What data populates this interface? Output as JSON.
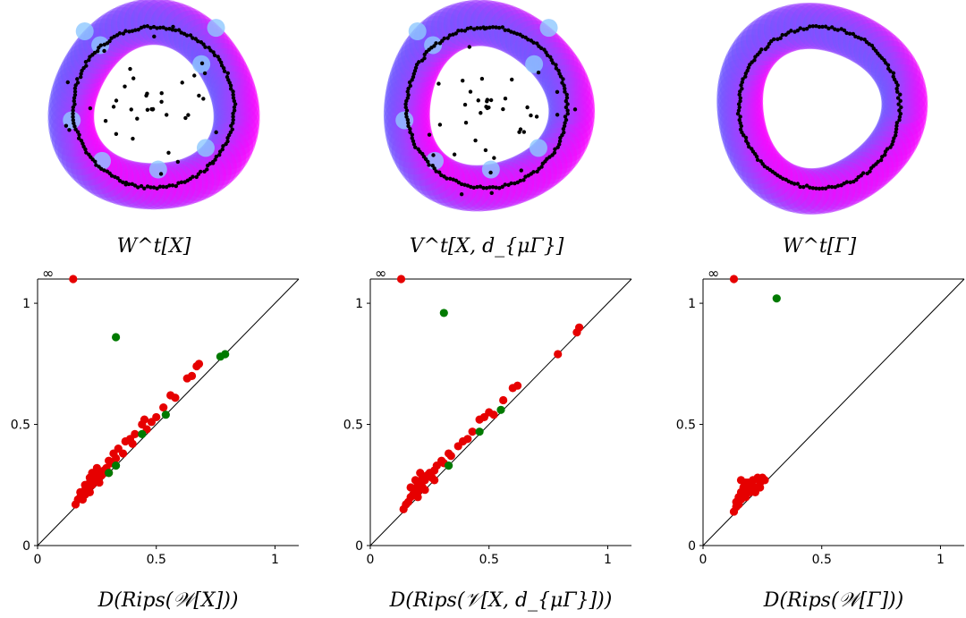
{
  "colors": {
    "finite_class": "#e60000",
    "essential_class": "#007a00",
    "diagonal": "#000000",
    "point_cloud": "#000000",
    "ring_outer": "#ff00ff",
    "ring_inner": "#6a5cff",
    "small_disk": "#8fc8ff"
  },
  "icons": [
    "infinity-marker-icon"
  ],
  "chart_data": [
    {
      "type": "scatter",
      "title": "",
      "caption": "W^t[X]",
      "xlabel": "",
      "ylabel": "",
      "variant": "noisy-circle",
      "outliers": true,
      "series": [],
      "ticks": []
    },
    {
      "type": "scatter",
      "title": "",
      "caption": "V^t[X, d_{μΓ}]",
      "xlabel": "",
      "ylabel": "",
      "variant": "noisy-circle",
      "outliers": true,
      "series": [],
      "ticks": []
    },
    {
      "type": "scatter",
      "title": "",
      "caption": "W^t[Γ]",
      "xlabel": "",
      "ylabel": "",
      "variant": "clean-circle",
      "outliers": false,
      "series": [],
      "ticks": []
    },
    {
      "type": "scatter",
      "title": "",
      "caption": "D(Rips(𝒲[X]))",
      "xlabel": "",
      "ylabel": "",
      "xlim": [
        0,
        1.1
      ],
      "ylim": [
        0,
        1.1
      ],
      "infinity_label": "∞",
      "x_ticks": [
        "0",
        "0.5",
        "1"
      ],
      "y_ticks": [
        "0",
        "0.5",
        "1"
      ],
      "grid": false,
      "series": [
        {
          "class": "finite",
          "points": [
            [
              0.16,
              0.17
            ],
            [
              0.17,
              0.19
            ],
            [
              0.18,
              0.2
            ],
            [
              0.19,
              0.22
            ],
            [
              0.2,
              0.23
            ],
            [
              0.2,
              0.25
            ],
            [
              0.21,
              0.24
            ],
            [
              0.22,
              0.26
            ],
            [
              0.22,
              0.28
            ],
            [
              0.23,
              0.25
            ],
            [
              0.24,
              0.27
            ],
            [
              0.24,
              0.29
            ],
            [
              0.25,
              0.27
            ],
            [
              0.26,
              0.3
            ],
            [
              0.27,
              0.29
            ],
            [
              0.28,
              0.31
            ],
            [
              0.18,
              0.22
            ],
            [
              0.2,
              0.21
            ],
            [
              0.23,
              0.3
            ],
            [
              0.25,
              0.32
            ],
            [
              0.29,
              0.32
            ],
            [
              0.3,
              0.35
            ],
            [
              0.31,
              0.34
            ],
            [
              0.32,
              0.38
            ],
            [
              0.33,
              0.36
            ],
            [
              0.34,
              0.4
            ],
            [
              0.36,
              0.38
            ],
            [
              0.37,
              0.43
            ],
            [
              0.39,
              0.44
            ],
            [
              0.4,
              0.42
            ],
            [
              0.41,
              0.46
            ],
            [
              0.44,
              0.5
            ],
            [
              0.45,
              0.52
            ],
            [
              0.46,
              0.48
            ],
            [
              0.48,
              0.51
            ],
            [
              0.5,
              0.53
            ],
            [
              0.53,
              0.57
            ],
            [
              0.56,
              0.62
            ],
            [
              0.58,
              0.61
            ],
            [
              0.63,
              0.69
            ],
            [
              0.65,
              0.7
            ],
            [
              0.67,
              0.74
            ],
            [
              0.68,
              0.75
            ],
            [
              0.22,
              0.22
            ],
            [
              0.19,
              0.19
            ],
            [
              0.26,
              0.26
            ],
            [
              0.3,
              0.3
            ]
          ],
          "essential": [
            [
              0.15,
              1.1
            ]
          ]
        },
        {
          "class": "essential",
          "points": [
            [
              0.33,
              0.86
            ],
            [
              0.77,
              0.78
            ],
            [
              0.79,
              0.79
            ],
            [
              0.44,
              0.46
            ],
            [
              0.54,
              0.54
            ],
            [
              0.33,
              0.33
            ],
            [
              0.3,
              0.3
            ]
          ]
        }
      ]
    },
    {
      "type": "scatter",
      "title": "",
      "caption": "D(Rips(𝒱[X, d_{μΓ}]))",
      "xlabel": "",
      "ylabel": "",
      "xlim": [
        0,
        1.1
      ],
      "ylim": [
        0,
        1.1
      ],
      "infinity_label": "∞",
      "x_ticks": [
        "0",
        "0.5",
        "1"
      ],
      "y_ticks": [
        "0",
        "0.5",
        "1"
      ],
      "grid": false,
      "series": [
        {
          "class": "finite",
          "points": [
            [
              0.14,
              0.15
            ],
            [
              0.15,
              0.17
            ],
            [
              0.16,
              0.18
            ],
            [
              0.17,
              0.2
            ],
            [
              0.18,
              0.21
            ],
            [
              0.19,
              0.23
            ],
            [
              0.2,
              0.22
            ],
            [
              0.2,
              0.25
            ],
            [
              0.21,
              0.26
            ],
            [
              0.22,
              0.24
            ],
            [
              0.22,
              0.28
            ],
            [
              0.23,
              0.27
            ],
            [
              0.24,
              0.29
            ],
            [
              0.25,
              0.3
            ],
            [
              0.26,
              0.28
            ],
            [
              0.27,
              0.31
            ],
            [
              0.17,
              0.24
            ],
            [
              0.19,
              0.27
            ],
            [
              0.21,
              0.3
            ],
            [
              0.28,
              0.33
            ],
            [
              0.3,
              0.35
            ],
            [
              0.31,
              0.34
            ],
            [
              0.33,
              0.38
            ],
            [
              0.34,
              0.37
            ],
            [
              0.37,
              0.41
            ],
            [
              0.39,
              0.43
            ],
            [
              0.41,
              0.44
            ],
            [
              0.43,
              0.47
            ],
            [
              0.46,
              0.52
            ],
            [
              0.48,
              0.53
            ],
            [
              0.5,
              0.55
            ],
            [
              0.52,
              0.54
            ],
            [
              0.56,
              0.6
            ],
            [
              0.6,
              0.65
            ],
            [
              0.62,
              0.66
            ],
            [
              0.79,
              0.79
            ],
            [
              0.87,
              0.88
            ],
            [
              0.88,
              0.9
            ],
            [
              0.23,
              0.23
            ],
            [
              0.2,
              0.2
            ],
            [
              0.27,
              0.27
            ]
          ],
          "essential": [
            [
              0.13,
              1.1
            ]
          ]
        },
        {
          "class": "essential",
          "points": [
            [
              0.31,
              0.96
            ],
            [
              0.55,
              0.56
            ],
            [
              0.46,
              0.47
            ],
            [
              0.33,
              0.33
            ]
          ]
        }
      ]
    },
    {
      "type": "scatter",
      "title": "",
      "caption": "D(Rips(𝒲[Γ]))",
      "xlabel": "",
      "ylabel": "",
      "xlim": [
        0,
        1.1
      ],
      "ylim": [
        0,
        1.1
      ],
      "infinity_label": "∞",
      "x_ticks": [
        "0",
        "0.5",
        "1"
      ],
      "y_ticks": [
        "0",
        "0.5",
        "1"
      ],
      "grid": false,
      "series": [
        {
          "class": "finite",
          "points": [
            [
              0.13,
              0.14
            ],
            [
              0.14,
              0.16
            ],
            [
              0.14,
              0.18
            ],
            [
              0.15,
              0.17
            ],
            [
              0.15,
              0.2
            ],
            [
              0.16,
              0.19
            ],
            [
              0.16,
              0.22
            ],
            [
              0.17,
              0.21
            ],
            [
              0.17,
              0.24
            ],
            [
              0.18,
              0.2
            ],
            [
              0.18,
              0.23
            ],
            [
              0.19,
              0.22
            ],
            [
              0.19,
              0.26
            ],
            [
              0.2,
              0.25
            ],
            [
              0.21,
              0.23
            ],
            [
              0.21,
              0.27
            ],
            [
              0.22,
              0.24
            ],
            [
              0.23,
              0.28
            ],
            [
              0.24,
              0.26
            ],
            [
              0.25,
              0.28
            ],
            [
              0.26,
              0.27
            ],
            [
              0.16,
              0.27
            ],
            [
              0.18,
              0.26
            ],
            [
              0.2,
              0.22
            ],
            [
              0.22,
              0.22
            ],
            [
              0.24,
              0.24
            ]
          ],
          "essential": [
            [
              0.13,
              1.1
            ]
          ]
        },
        {
          "class": "essential",
          "points": [
            [
              0.31,
              1.02
            ]
          ]
        }
      ]
    }
  ]
}
